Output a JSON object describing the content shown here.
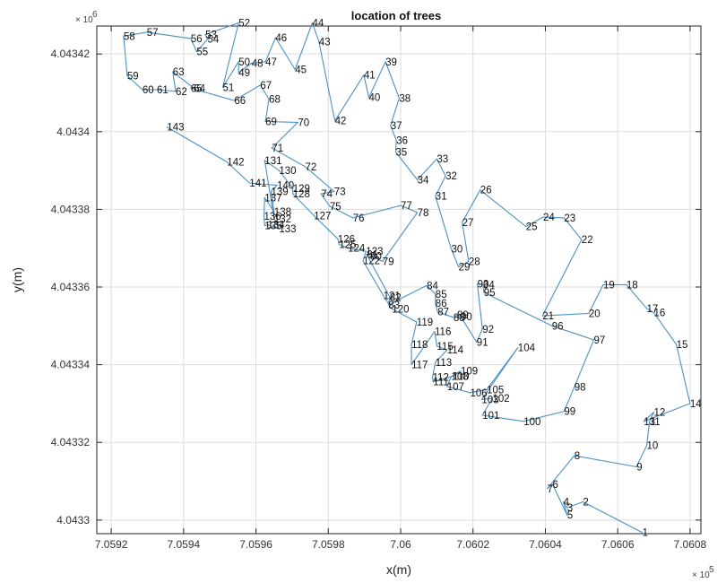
{
  "chart_data": {
    "type": "line",
    "title": "location of trees",
    "xlabel": "x(m)",
    "ylabel": "y(m)",
    "x_multiplier": "× 10",
    "x_multiplier_exp": "5",
    "y_multiplier": "× 10",
    "y_multiplier_exp": "6",
    "xlim": [
      705916,
      706083
    ],
    "ylim": [
      4043296.5,
      4043427.2
    ],
    "x_ticks": [
      705920,
      705940,
      705960,
      705980,
      706000,
      706020,
      706040,
      706060,
      706080
    ],
    "x_tick_labels": [
      "7.0592",
      "7.0594",
      "7.0596",
      "7.0598",
      "7.06",
      "7.0602",
      "7.0604",
      "7.0606",
      "7.0608"
    ],
    "y_ticks": [
      4043300,
      4043320,
      4043340,
      4043360,
      4043380,
      4043400,
      4043420
    ],
    "y_tick_labels": [
      "4.0433",
      "4.04332",
      "4.04334",
      "4.04336",
      "4.04338",
      "4.0434",
      "4.04342"
    ],
    "grid": true,
    "line_color": "#4a90c2",
    "series": [
      {
        "points": [
          {
            "label": "1",
            "x": 706066.8,
            "y": 4043296.8
          },
          {
            "label": "2",
            "x": 706050.4,
            "y": 4043304.7
          },
          {
            "label": "3",
            "x": 706046.0,
            "y": 4043303.2
          },
          {
            "label": "4",
            "x": 706045.0,
            "y": 4043304.7
          },
          {
            "label": "5",
            "x": 706046.0,
            "y": 4043301.3
          },
          {
            "label": "6",
            "x": 706042.0,
            "y": 4043309.2
          },
          {
            "label": "7",
            "x": 706040.5,
            "y": 4043308.1
          },
          {
            "label": "8",
            "x": 706048.0,
            "y": 4043316.6
          },
          {
            "label": "9",
            "x": 706065.2,
            "y": 4043313.7
          },
          {
            "label": "10",
            "x": 706068.0,
            "y": 4043319.2
          },
          {
            "label": "11",
            "x": 706068.8,
            "y": 4043325.4
          },
          {
            "label": "12",
            "x": 706070.0,
            "y": 4043327.8
          },
          {
            "label": "13",
            "x": 706067.2,
            "y": 4043325.4
          },
          {
            "label": "14",
            "x": 706080.0,
            "y": 4043330.0
          },
          {
            "label": "15",
            "x": 706076.2,
            "y": 4043345.2
          },
          {
            "label": "16",
            "x": 706070.0,
            "y": 4043353.4
          },
          {
            "label": "17",
            "x": 706068.0,
            "y": 4043354.5
          },
          {
            "label": "18",
            "x": 706062.4,
            "y": 4043360.6
          },
          {
            "label": "19",
            "x": 706056.0,
            "y": 4043360.6
          },
          {
            "label": "20",
            "x": 706052.0,
            "y": 4043353.2
          },
          {
            "label": "21",
            "x": 706039.2,
            "y": 4043352.6
          },
          {
            "label": "22",
            "x": 706050.0,
            "y": 4043372.2
          },
          {
            "label": "23",
            "x": 706045.2,
            "y": 4043377.8
          },
          {
            "label": "24",
            "x": 706039.4,
            "y": 4043378.0
          },
          {
            "label": "25",
            "x": 706034.6,
            "y": 4043375.6
          },
          {
            "label": "26",
            "x": 706022.0,
            "y": 4043385.0
          },
          {
            "label": "27",
            "x": 706017.0,
            "y": 4043376.6
          },
          {
            "label": "28",
            "x": 706018.8,
            "y": 4043366.6
          },
          {
            "label": "29",
            "x": 706016.0,
            "y": 4043365.2
          },
          {
            "label": "30",
            "x": 706014.0,
            "y": 4043369.8
          },
          {
            "label": "31",
            "x": 706009.6,
            "y": 4043383.4
          },
          {
            "label": "32",
            "x": 706012.4,
            "y": 4043388.6
          },
          {
            "label": "33",
            "x": 706010.0,
            "y": 4043393.0
          },
          {
            "label": "34",
            "x": 706004.6,
            "y": 4043387.6
          },
          {
            "label": "35",
            "x": 705998.6,
            "y": 4043394.8
          },
          {
            "label": "36",
            "x": 705998.8,
            "y": 4043397.8
          },
          {
            "label": "37",
            "x": 705997.2,
            "y": 4043401.6
          },
          {
            "label": "38",
            "x": 705999.6,
            "y": 4043408.6
          },
          {
            "label": "39",
            "x": 705995.8,
            "y": 4043418.0
          },
          {
            "label": "40",
            "x": 705991.2,
            "y": 4043408.8
          },
          {
            "label": "41",
            "x": 705989.8,
            "y": 4043414.6
          },
          {
            "label": "42",
            "x": 705981.8,
            "y": 4043402.8
          },
          {
            "label": "43",
            "x": 705977.4,
            "y": 4043423.2
          },
          {
            "label": "44",
            "x": 705975.6,
            "y": 4043428.0
          },
          {
            "label": "45",
            "x": 705970.8,
            "y": 4043416.0
          },
          {
            "label": "46",
            "x": 705965.4,
            "y": 4043424.2
          },
          {
            "label": "47",
            "x": 705962.6,
            "y": 4043418.0
          },
          {
            "label": "48",
            "x": 705958.8,
            "y": 4043417.6
          },
          {
            "label": "49",
            "x": 705955.2,
            "y": 4043415.2
          },
          {
            "label": "50",
            "x": 705955.2,
            "y": 4043418.0
          },
          {
            "label": "51",
            "x": 705950.8,
            "y": 4043411.4
          },
          {
            "label": "52",
            "x": 705955.2,
            "y": 4043428.0
          },
          {
            "label": "53",
            "x": 705946.0,
            "y": 4043425.0
          },
          {
            "label": "54",
            "x": 705946.6,
            "y": 4043423.8
          },
          {
            "label": "55",
            "x": 705943.6,
            "y": 4043420.6
          },
          {
            "label": "56",
            "x": 705942.0,
            "y": 4043424.0
          },
          {
            "label": "57",
            "x": 705929.8,
            "y": 4043425.6
          },
          {
            "label": "58",
            "x": 705923.4,
            "y": 4043424.6
          },
          {
            "label": "59",
            "x": 705924.4,
            "y": 4043414.4
          },
          {
            "label": "60",
            "x": 705928.6,
            "y": 4043410.8
          },
          {
            "label": "61",
            "x": 705932.6,
            "y": 4043410.8
          },
          {
            "label": "62",
            "x": 705937.8,
            "y": 4043410.4
          },
          {
            "label": "63",
            "x": 705937.0,
            "y": 4043415.4
          },
          {
            "label": "64",
            "x": 705942.8,
            "y": 4043411.2
          },
          {
            "label": "65",
            "x": 705942.0,
            "y": 4043411.2
          },
          {
            "label": "66",
            "x": 705954.0,
            "y": 4043408.0
          },
          {
            "label": "67",
            "x": 705961.2,
            "y": 4043412.0
          },
          {
            "label": "68",
            "x": 705963.6,
            "y": 4043408.4
          },
          {
            "label": "69",
            "x": 705962.6,
            "y": 4043402.6
          },
          {
            "label": "70",
            "x": 705971.6,
            "y": 4043402.4
          },
          {
            "label": "71",
            "x": 705964.4,
            "y": 4043395.8
          },
          {
            "label": "72",
            "x": 705973.6,
            "y": 4043391.0
          },
          {
            "label": "73",
            "x": 705981.6,
            "y": 4043384.6
          },
          {
            "label": "74",
            "x": 705978.0,
            "y": 4043384.0
          },
          {
            "label": "75",
            "x": 705980.4,
            "y": 4043380.8
          },
          {
            "label": "76",
            "x": 705986.8,
            "y": 4043377.8
          },
          {
            "label": "77",
            "x": 706000.0,
            "y": 4043381.0
          },
          {
            "label": "78",
            "x": 706004.6,
            "y": 4043379.2
          },
          {
            "label": "79",
            "x": 705995.0,
            "y": 4043366.6
          },
          {
            "label": "80",
            "x": 705991.6,
            "y": 4043368.0
          },
          {
            "label": "81",
            "x": 705990.6,
            "y": 4043368.4
          },
          {
            "label": "82",
            "x": 705997.0,
            "y": 4043357.4
          },
          {
            "label": "83",
            "x": 705996.6,
            "y": 4043355.4
          },
          {
            "label": "84",
            "x": 706007.2,
            "y": 4043360.4
          },
          {
            "label": "85",
            "x": 706009.6,
            "y": 4043358.2
          },
          {
            "label": "86",
            "x": 706009.6,
            "y": 4043355.8
          },
          {
            "label": "87",
            "x": 706010.2,
            "y": 4043353.6
          },
          {
            "label": "88",
            "x": 706014.6,
            "y": 4043352.2
          },
          {
            "label": "89",
            "x": 706015.6,
            "y": 4043352.8
          },
          {
            "label": "90",
            "x": 706016.6,
            "y": 4043352.4
          },
          {
            "label": "91",
            "x": 706021.0,
            "y": 4043345.8
          },
          {
            "label": "92",
            "x": 706022.6,
            "y": 4043349.2
          },
          {
            "label": "93",
            "x": 706021.2,
            "y": 4043360.8
          },
          {
            "label": "94",
            "x": 706022.8,
            "y": 4043360.6
          },
          {
            "label": "95",
            "x": 706023.0,
            "y": 4043358.6
          },
          {
            "label": "96",
            "x": 706041.8,
            "y": 4043350.0
          },
          {
            "label": "97",
            "x": 706053.4,
            "y": 4043346.4
          },
          {
            "label": "98",
            "x": 706048.0,
            "y": 4043334.2
          },
          {
            "label": "99",
            "x": 706045.2,
            "y": 4043328.0
          },
          {
            "label": "100",
            "x": 706034.0,
            "y": 4043325.4
          },
          {
            "label": "101",
            "x": 706022.6,
            "y": 4043327.0
          },
          {
            "label": "102",
            "x": 706025.4,
            "y": 4043331.4
          },
          {
            "label": "103",
            "x": 706022.4,
            "y": 4043331.0
          },
          {
            "label": "104",
            "x": 706032.4,
            "y": 4043344.4
          },
          {
            "label": "105",
            "x": 706023.8,
            "y": 4043333.6
          },
          {
            "label": "106",
            "x": 706019.2,
            "y": 4043332.8
          },
          {
            "label": "107",
            "x": 706012.8,
            "y": 4043334.4
          },
          {
            "label": "108",
            "x": 706014.0,
            "y": 4043337.0
          },
          {
            "label": "109",
            "x": 706016.6,
            "y": 4043338.4
          },
          {
            "label": "110",
            "x": 706014.4,
            "y": 4043337.0
          },
          {
            "label": "111",
            "x": 706009.0,
            "y": 4043335.6
          },
          {
            "label": "112",
            "x": 706008.8,
            "y": 4043336.8
          },
          {
            "label": "113",
            "x": 706009.6,
            "y": 4043340.6
          },
          {
            "label": "114",
            "x": 706012.8,
            "y": 4043343.8
          },
          {
            "label": "115",
            "x": 706010.0,
            "y": 4043344.8
          },
          {
            "label": "116",
            "x": 706009.4,
            "y": 4043348.6
          },
          {
            "label": "117",
            "x": 706003.0,
            "y": 4043340.0
          },
          {
            "label": "118",
            "x": 706003.0,
            "y": 4043345.2
          },
          {
            "label": "119",
            "x": 706004.4,
            "y": 4043351.0
          },
          {
            "label": "120",
            "x": 705997.6,
            "y": 4043354.4
          },
          {
            "label": "121",
            "x": 705995.2,
            "y": 4043357.8
          },
          {
            "label": "122",
            "x": 705989.6,
            "y": 4043366.8
          },
          {
            "label": "123",
            "x": 705990.4,
            "y": 4043369.2
          },
          {
            "label": "124",
            "x": 705985.4,
            "y": 4043370.0
          },
          {
            "label": "125",
            "x": 705983.0,
            "y": 4043371.0
          },
          {
            "label": "126",
            "x": 705982.6,
            "y": 4043372.4
          },
          {
            "label": "127",
            "x": 705976.0,
            "y": 4043378.4
          },
          {
            "label": "128",
            "x": 705970.2,
            "y": 4043384.0
          },
          {
            "label": "129",
            "x": 705970.2,
            "y": 4043385.4
          },
          {
            "label": "130",
            "x": 705966.4,
            "y": 4043390.0
          },
          {
            "label": "131",
            "x": 705962.4,
            "y": 4043392.6
          },
          {
            "label": "132",
            "x": 705965.0,
            "y": 4043377.6
          },
          {
            "label": "133",
            "x": 705966.4,
            "y": 4043375.0
          },
          {
            "label": "134",
            "x": 705963.2,
            "y": 4043376.0
          },
          {
            "label": "135",
            "x": 705962.4,
            "y": 4043375.8
          },
          {
            "label": "136",
            "x": 705962.2,
            "y": 4043378.2
          },
          {
            "label": "137",
            "x": 705962.4,
            "y": 4043383.0
          },
          {
            "label": "138",
            "x": 705965.0,
            "y": 4043379.4
          },
          {
            "label": "139",
            "x": 705964.2,
            "y": 4043384.6
          },
          {
            "label": "140",
            "x": 705965.8,
            "y": 4043386.2
          },
          {
            "label": "141",
            "x": 705958.2,
            "y": 4043386.8
          },
          {
            "label": "142",
            "x": 705952.0,
            "y": 4043392.2
          },
          {
            "label": "143",
            "x": 705935.4,
            "y": 4043401.2
          }
        ]
      }
    ]
  }
}
